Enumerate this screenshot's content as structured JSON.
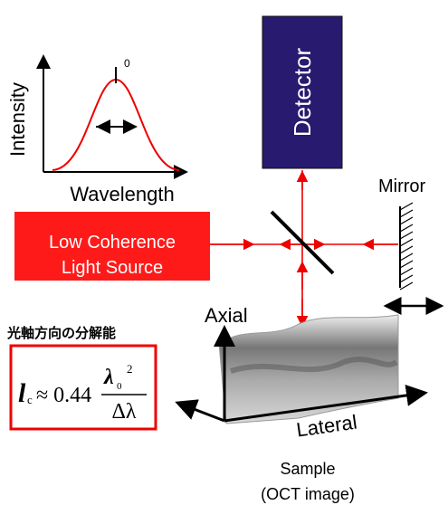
{
  "spectrum": {
    "y_label": "Intensity",
    "x_label": "Wavelength",
    "peak_label": "0"
  },
  "detector": {
    "label": "Detector"
  },
  "mirror": {
    "label": "Mirror"
  },
  "source": {
    "lines": [
      "Low Coherence",
      "Light Source"
    ]
  },
  "sample": {
    "axial": "Axial",
    "lateral": "Lateral",
    "caption": [
      "Sample",
      "(OCT image)"
    ]
  },
  "formula": {
    "title": "光軸方向の分解能",
    "symbol": "l",
    "subscript": "c",
    "approx": "≈ 0.44",
    "numerator": "λ",
    "numerator_sub": "0",
    "numerator_sup": "2",
    "denominator": "Δλ"
  }
}
